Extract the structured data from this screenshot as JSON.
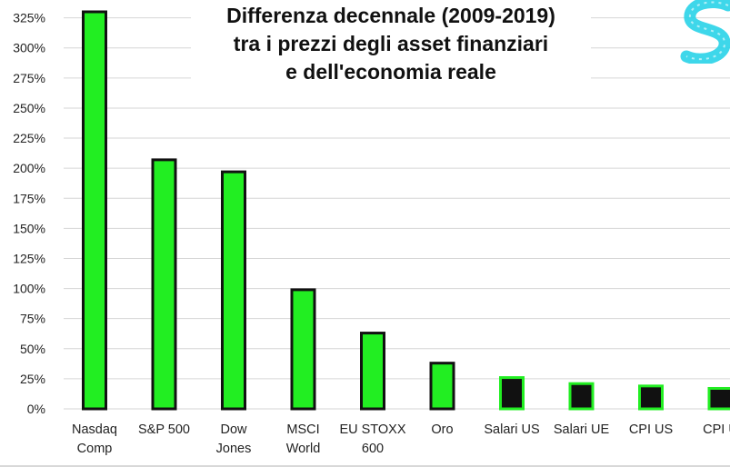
{
  "chart_data": {
    "type": "bar",
    "title_lines": [
      "Differenza decennale (2009-2019)",
      "tra i prezzi degli asset finanziari",
      "e dell'economia reale"
    ],
    "categories": [
      [
        "Nasdaq",
        "Comp"
      ],
      [
        "S&P 500"
      ],
      [
        "Dow",
        "Jones"
      ],
      [
        "MSCI",
        "World"
      ],
      [
        "EU STOXX",
        "600"
      ],
      [
        "Oro"
      ],
      [
        "Salari US"
      ],
      [
        "Salari UE"
      ],
      [
        "CPI US"
      ],
      [
        "CPI U"
      ]
    ],
    "values": [
      330,
      207,
      197,
      99,
      63,
      38,
      26,
      21,
      19,
      17
    ],
    "bar_groups": [
      "financial",
      "financial",
      "financial",
      "financial",
      "financial",
      "financial",
      "real",
      "real",
      "real",
      "real"
    ],
    "ylim": [
      0,
      330
    ],
    "yticks": [
      0,
      25,
      50,
      75,
      100,
      125,
      150,
      175,
      200,
      225,
      250,
      275,
      300,
      325
    ],
    "ytick_labels": [
      "0%",
      "25%",
      "50%",
      "75%",
      "100%",
      "125%",
      "150%",
      "175%",
      "200%",
      "225%",
      "250%",
      "275%",
      "300%",
      "325%"
    ],
    "xlabel": "",
    "ylabel": "",
    "grid": true,
    "colors": {
      "financial_fill": "#22ee22",
      "financial_stroke": "#111111",
      "real_fill": "#111111",
      "real_stroke": "#22ee22",
      "grid": "#d6d6d6",
      "logo": "#29d3e8"
    }
  },
  "logo": {
    "icon": "brand-s-logo-icon"
  }
}
